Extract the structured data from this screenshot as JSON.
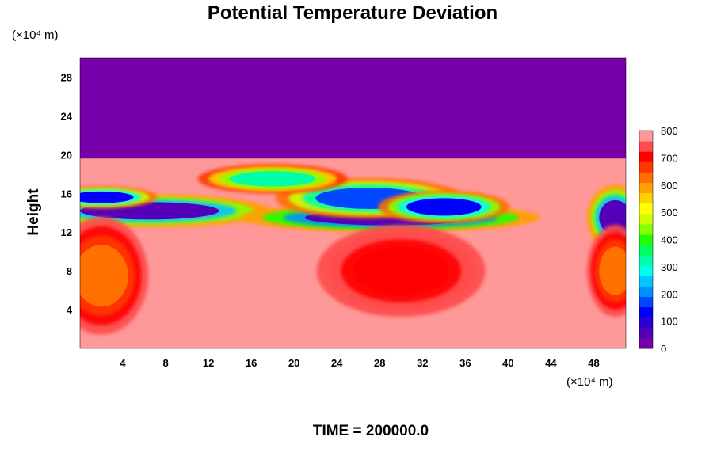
{
  "chart_data": {
    "type": "heatmap",
    "title": "Potential Temperature Deviation",
    "ylabel": "Height",
    "y_unit": "(×10⁴ m)",
    "x_unit": "(×10⁴ m)",
    "xlim": [
      0,
      51
    ],
    "ylim": [
      0,
      30
    ],
    "x_ticks": [
      "4",
      "8",
      "12",
      "16",
      "20",
      "24",
      "28",
      "32",
      "36",
      "40",
      "44",
      "48"
    ],
    "y_ticks": [
      "4",
      "8",
      "12",
      "16",
      "20",
      "24",
      "28"
    ],
    "colorbar": {
      "min": 0,
      "max": 800,
      "ticks": [
        "0",
        "100",
        "200",
        "300",
        "400",
        "500",
        "600",
        "700",
        "800"
      ],
      "colors": [
        "#7700aa",
        "#5500b8",
        "#2a00d0",
        "#0000ff",
        "#0048ff",
        "#0090ff",
        "#00c8ff",
        "#00ffee",
        "#00ffa8",
        "#00ff60",
        "#22ff00",
        "#88ff00",
        "#ccff00",
        "#ffff00",
        "#ffd000",
        "#ffa000",
        "#ff7000",
        "#ff3800",
        "#ff0000",
        "#ff4c4c",
        "#ff9898"
      ]
    },
    "background_value": 800,
    "upper_layer": {
      "value": 0,
      "y_range": [
        19.6,
        30
      ]
    },
    "features": [
      {
        "x": 6.5,
        "y": 14.2,
        "value": 40,
        "rx": 6.5,
        "ry": 0.9
      },
      {
        "x": 2,
        "y": 15.6,
        "value": 120,
        "rx": 3,
        "ry": 0.6
      },
      {
        "x": 29,
        "y": 13.5,
        "value": 20,
        "rx": 8,
        "ry": 0.8
      },
      {
        "x": 27,
        "y": 15.5,
        "value": 150,
        "rx": 5,
        "ry": 1.1
      },
      {
        "x": 34,
        "y": 14.6,
        "value": 100,
        "rx": 3.5,
        "ry": 0.9
      },
      {
        "x": 18,
        "y": 17.5,
        "value": 300,
        "rx": 4,
        "ry": 0.8
      },
      {
        "x": 50,
        "y": 13.5,
        "value": 50,
        "rx": 1.5,
        "ry": 1.8
      },
      {
        "x": 30,
        "y": 8,
        "value": 700,
        "rx": 4.5,
        "ry": 2.5
      },
      {
        "x": 2,
        "y": 7.5,
        "value": 650,
        "rx": 2.5,
        "ry": 3.2
      },
      {
        "x": 50,
        "y": 8,
        "value": 650,
        "rx": 1.5,
        "ry": 2.5
      }
    ],
    "annotation": "TIME = 200000.0"
  }
}
